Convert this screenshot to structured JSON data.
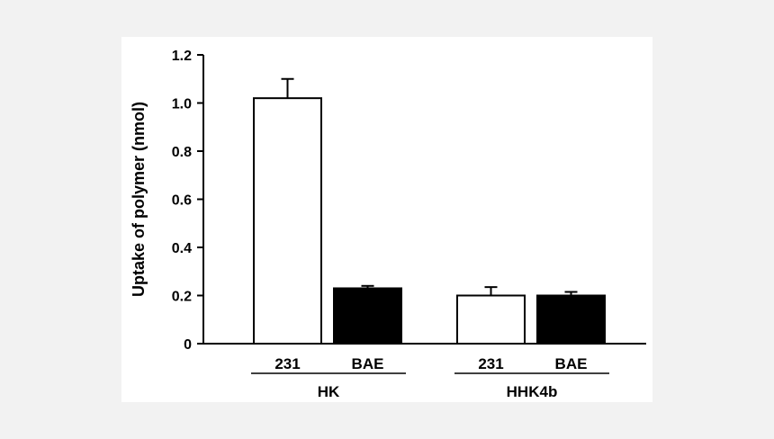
{
  "chart_data": {
    "type": "bar",
    "title": "",
    "xlabel": "",
    "ylabel": "Uptake of polymer (nmol)",
    "ylim": [
      0,
      1.2
    ],
    "yticks": [
      "0",
      "0.2",
      "0.4",
      "0.6",
      "0.8",
      "1.0",
      "1.2"
    ],
    "grid": false,
    "legend": "none",
    "groups": [
      {
        "name": "HK",
        "bars": [
          {
            "label": "231",
            "value": 1.02,
            "error": 0.08,
            "fill": "#ffffff"
          },
          {
            "label": "BAE",
            "value": 0.23,
            "error": 0.01,
            "fill": "#000000"
          }
        ]
      },
      {
        "name": "HHK4b",
        "bars": [
          {
            "label": "231",
            "value": 0.2,
            "error": 0.035,
            "fill": "#ffffff"
          },
          {
            "label": "BAE",
            "value": 0.2,
            "error": 0.015,
            "fill": "#000000"
          }
        ]
      }
    ]
  }
}
